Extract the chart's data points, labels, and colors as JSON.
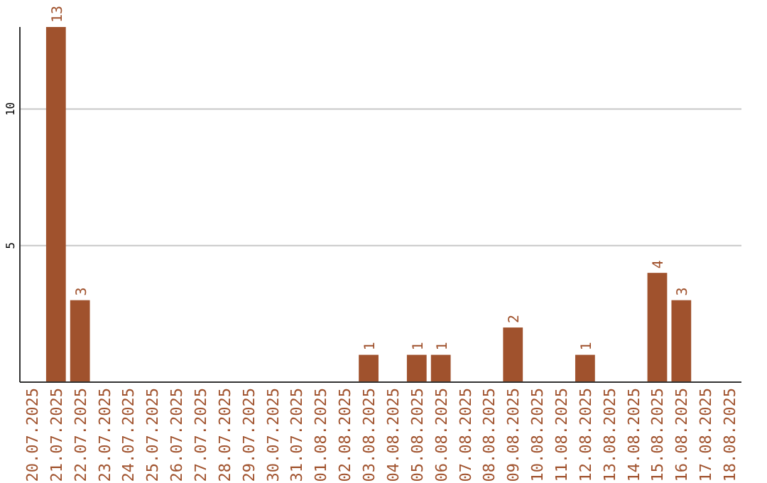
{
  "chart_data": {
    "type": "bar",
    "categories": [
      "20.07.2025",
      "21.07.2025",
      "22.07.2025",
      "23.07.2025",
      "24.07.2025",
      "25.07.2025",
      "26.07.2025",
      "27.07.2025",
      "28.07.2025",
      "29.07.2025",
      "30.07.2025",
      "31.07.2025",
      "01.08.2025",
      "02.08.2025",
      "03.08.2025",
      "04.08.2025",
      "05.08.2025",
      "06.08.2025",
      "07.08.2025",
      "08.08.2025",
      "09.08.2025",
      "10.08.2025",
      "11.08.2025",
      "12.08.2025",
      "13.08.2025",
      "14.08.2025",
      "15.08.2025",
      "16.08.2025",
      "17.08.2025",
      "18.08.2025"
    ],
    "values": [
      0,
      13,
      3,
      0,
      0,
      0,
      0,
      0,
      0,
      0,
      0,
      0,
      0,
      0,
      1,
      0,
      1,
      1,
      0,
      0,
      2,
      0,
      0,
      1,
      0,
      0,
      4,
      3,
      0,
      0
    ],
    "value_labels": [
      null,
      "13",
      "3",
      null,
      null,
      null,
      null,
      null,
      null,
      null,
      null,
      null,
      null,
      null,
      "1",
      null,
      "1",
      "1",
      null,
      null,
      "2",
      null,
      null,
      "1",
      null,
      null,
      "4",
      "3",
      null,
      null
    ],
    "color": "#a0522d",
    "ylim": [
      0,
      13
    ],
    "yticks": [
      5,
      10
    ],
    "grid": "y"
  }
}
